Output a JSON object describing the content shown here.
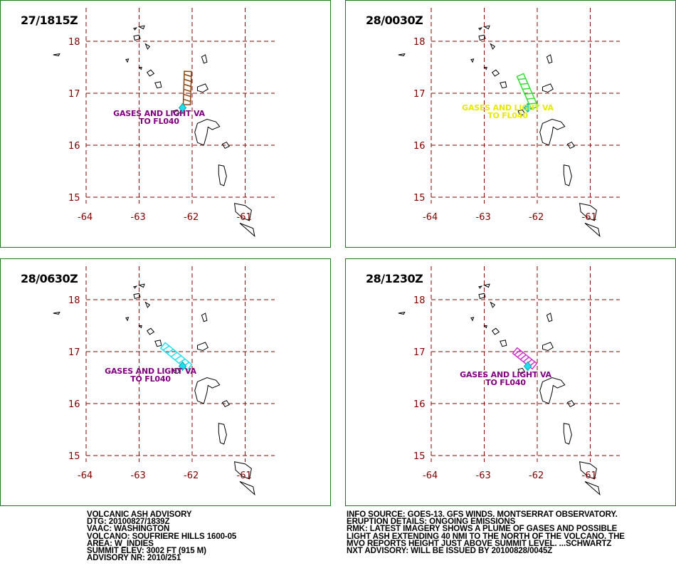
{
  "panels": [
    {
      "time": "27/1815Z",
      "color": "#8b4513",
      "label": [
        "GASES AND LIGHT VA",
        "TO FL040"
      ],
      "label_color": "#800080",
      "plume": [
        [
          -62.1,
          16.78
        ],
        [
          -62.08,
          17.42
        ]
      ]
    },
    {
      "time": "28/0030Z",
      "color": "#33dd33",
      "label": [
        "GASES AND LIGHT VA",
        "TO FL040"
      ],
      "label_color": "#e8e800",
      "plume": [
        [
          -62.05,
          16.72
        ],
        [
          -62.32,
          17.35
        ]
      ]
    },
    {
      "time": "28/0630Z",
      "color": "#22ddee",
      "label": [
        "GASES AND LIGHT VA",
        "TO FL040"
      ],
      "label_color": "#800080",
      "plume": [
        [
          -62.05,
          16.7
        ],
        [
          -62.55,
          17.12
        ]
      ]
    },
    {
      "time": "28/1230Z",
      "color": "#cc33cc",
      "label": [
        "GASES AND LIGHT VA",
        "TO FL040"
      ],
      "label_color": "#800080",
      "plume": [
        [
          -62.05,
          16.72
        ],
        [
          -62.42,
          17.02
        ]
      ]
    }
  ],
  "axes": {
    "lat_ticks": [
      "18",
      "17",
      "16",
      "15"
    ],
    "lon_ticks": [
      "-64",
      "-63",
      "-62",
      "-61"
    ],
    "lat_values": [
      18,
      17,
      16,
      15
    ],
    "lon_values": [
      -64,
      -63,
      -62,
      -61
    ]
  },
  "volcano": {
    "lon": -62.18,
    "lat": 16.72
  },
  "advisory_left": [
    "VOLCANIC ASH ADVISORY",
    "DTG: 20100827/1839Z",
    "VAAC: WASHINGTON",
    "VOLCANO: SOUFRIERE HILLS 1600-05",
    "AREA: W_INDIES",
    "SUMMIT ELEV: 3002 FT (915 M)",
    "ADVISORY NR: 2010/251"
  ],
  "advisory_right": [
    "INFO SOURCE: GOES-13. GFS WINDS. MONTSERRAT OBSERVATORY.",
    "ERUPTION DETAILS: ONGOING EMISSIONS",
    "RMK: LATEST IMAGERY SHOWS A PLUME OF GASES AND POSSIBLE",
    "LIGHT ASH EXTENDING 40 NMI TO THE NORTH OF THE VOLCANO. THE",
    "MVO REPORTS HEIGHT JUST ABOVE SUMMIT LEVEL. ...SCHWARTZ",
    "NXT ADVISORY: WILL BE ISSUED BY 20100828/0045Z"
  ]
}
